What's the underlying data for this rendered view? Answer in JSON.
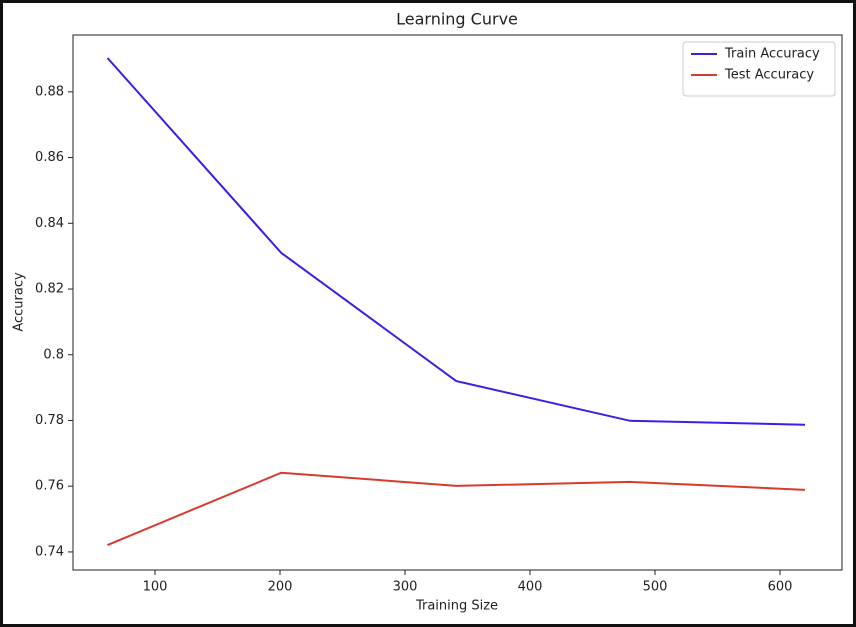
{
  "chart_data": {
    "type": "line",
    "title": "Learning Curve",
    "x_label": "Training Size",
    "y_label": "Accuracy",
    "x": [
      62,
      201,
      341,
      480,
      620
    ],
    "series": [
      {
        "name": "Train Accuracy",
        "color": "#3a1fe6",
        "values": [
          0.8903,
          0.831,
          0.792,
          0.7799,
          0.7787
        ]
      },
      {
        "name": "Test Accuracy",
        "color": "#d83a2e",
        "values": [
          0.7421,
          0.7641,
          0.7601,
          0.7613,
          0.7589
        ]
      }
    ],
    "xlim": [
      34.4,
      649.6
    ],
    "xticks": [
      100,
      200,
      300,
      400,
      500,
      600
    ],
    "ylim": [
      0.7345,
      0.8973
    ],
    "yticks": [
      0.74,
      0.76,
      0.78,
      0.8,
      0.82,
      0.84,
      0.86,
      0.88
    ],
    "legend": "upper right",
    "grid": false
  }
}
